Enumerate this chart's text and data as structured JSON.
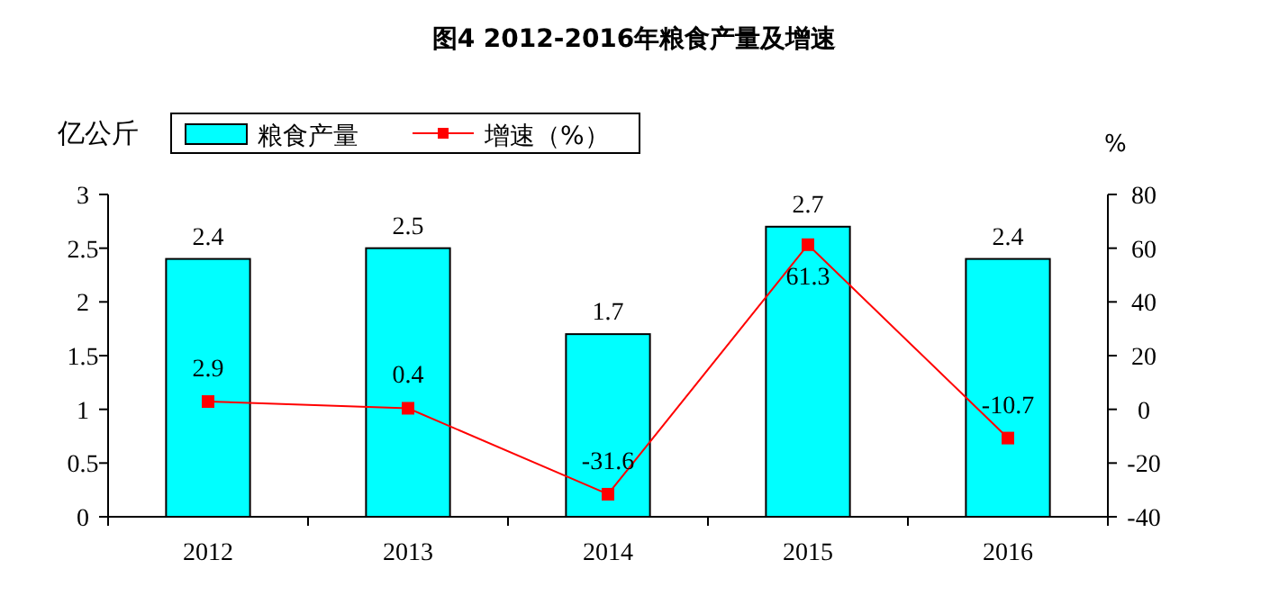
{
  "chart_data": {
    "type": "bar",
    "title": "图4 2012-2016年粮食产量及增速",
    "ylabel": "亿公斤",
    "y2label": "%",
    "categories": [
      "2012",
      "2013",
      "2014",
      "2015",
      "2016"
    ],
    "series": [
      {
        "name": "粮食产量",
        "color": "#00ffff",
        "values": [
          2.4,
          2.5,
          1.7,
          2.7,
          2.4
        ]
      },
      {
        "name": "增速（%）",
        "type": "line",
        "axis": "y2",
        "color": "#ff0000",
        "values": [
          2.9,
          0.4,
          -31.6,
          61.3,
          -10.7
        ]
      }
    ],
    "marker": "square",
    "ylim": [
      0,
      3
    ],
    "yticks": [
      0,
      0.5,
      1,
      1.5,
      2,
      2.5,
      3
    ],
    "y2lim": [
      -40,
      80
    ],
    "y2ticks": [
      -40,
      -20,
      0,
      20,
      40,
      60,
      80
    ],
    "data_labels": true,
    "legend": "top left"
  }
}
